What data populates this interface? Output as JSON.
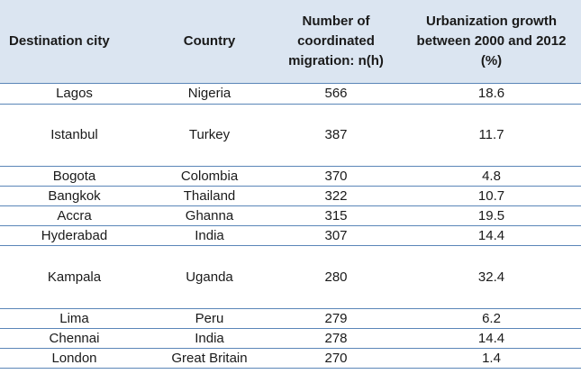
{
  "headers": {
    "city": "Destination city",
    "country": "Country",
    "migration": "Number of coordinated migration: n(h)",
    "growth": "Urbanization growth between 2000 and 2012 (%)"
  },
  "rows": [
    {
      "city": "Lagos",
      "country": "Nigeria",
      "migration": "566",
      "growth": "18.6"
    },
    {
      "city": "Istanbul",
      "country": "Turkey",
      "migration": "387",
      "growth": "11.7"
    },
    {
      "city": "Bogota",
      "country": "Colombia",
      "migration": "370",
      "growth": "4.8"
    },
    {
      "city": "Bangkok",
      "country": "Thailand",
      "migration": "322",
      "growth": "10.7"
    },
    {
      "city": "Accra",
      "country": "Ghanna",
      "migration": "315",
      "growth": "19.5"
    },
    {
      "city": "Hyderabad",
      "country": "India",
      "migration": "307",
      "growth": "14.4"
    },
    {
      "city": "Kampala",
      "country": "Uganda",
      "migration": "280",
      "growth": "32.4"
    },
    {
      "city": "Lima",
      "country": "Peru",
      "migration": "279",
      "growth": "6.2"
    },
    {
      "city": "Chennai",
      "country": "India",
      "migration": "278",
      "growth": "14.4"
    },
    {
      "city": "London",
      "country": "Great Britain",
      "migration": "270",
      "growth": "1.4"
    }
  ]
}
